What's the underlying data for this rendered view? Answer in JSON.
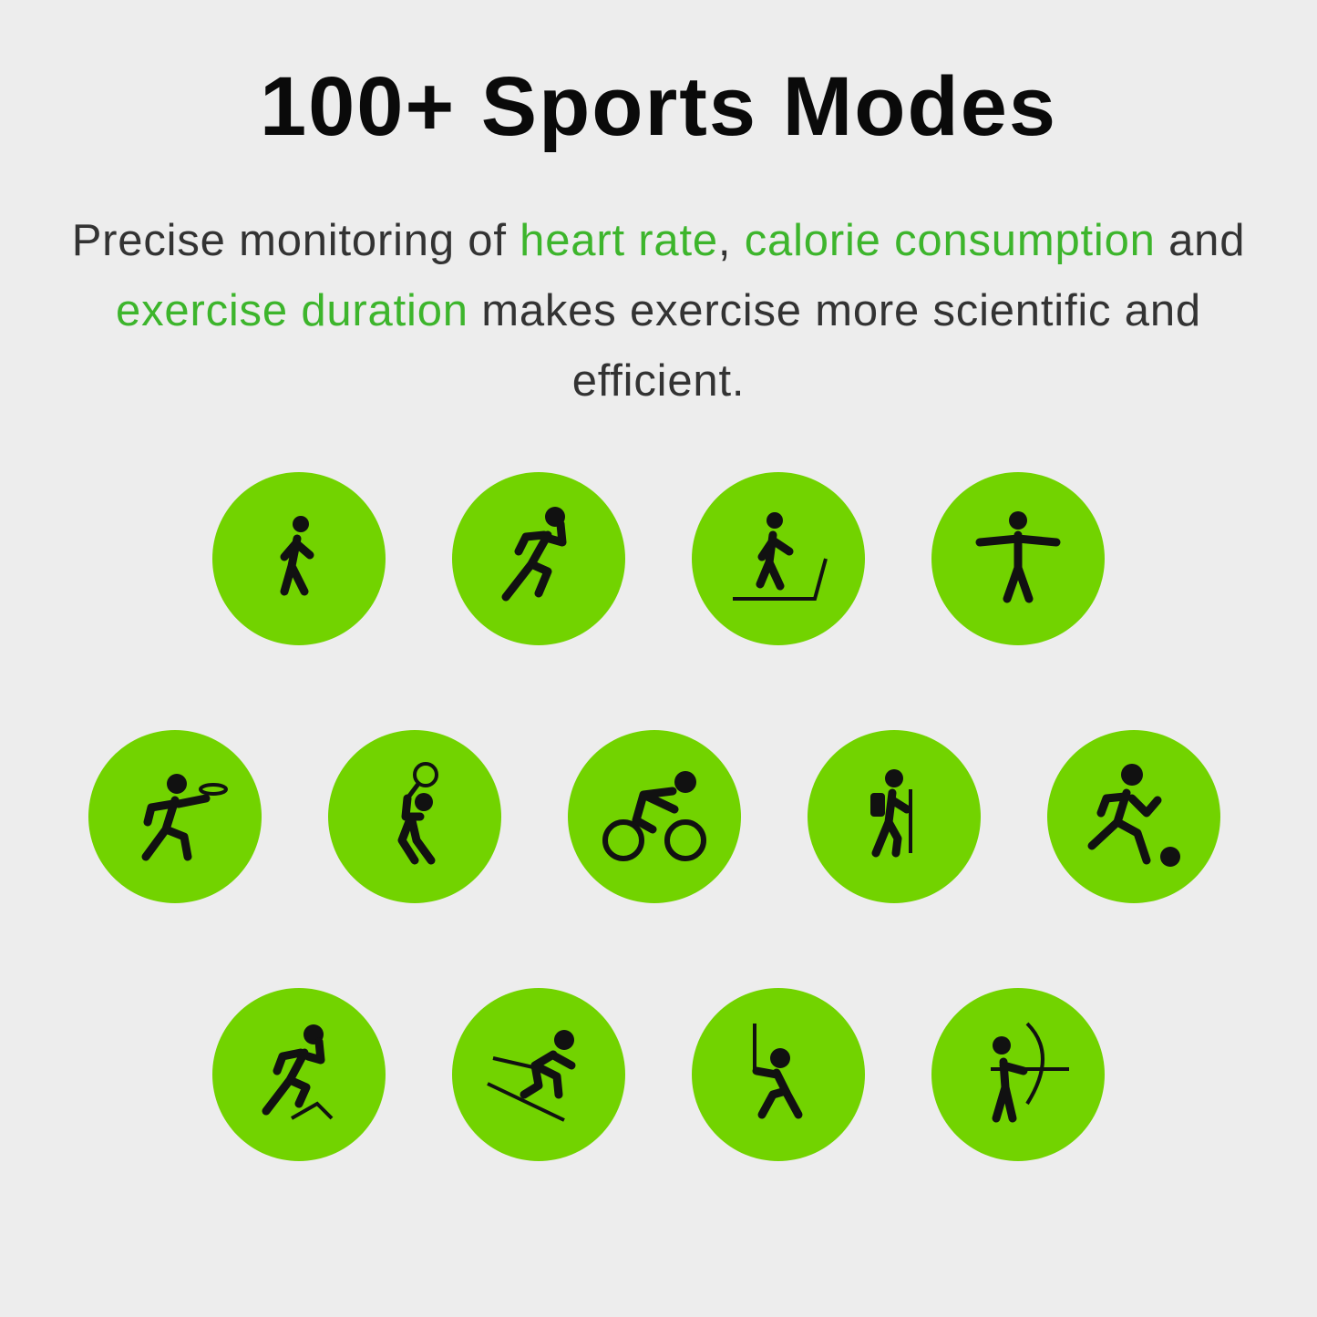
{
  "title": "100+ Sports Modes",
  "description": {
    "p1": "Precise monitoring of ",
    "h1": "heart rate",
    "p2": ", ",
    "h2": "calorie consumption",
    "p3": " and ",
    "h3": "exercise duration",
    "p4": " makes exercise more scientific and efficient."
  },
  "colors": {
    "background": "#ededed",
    "circle": "#72d300",
    "highlight": "#3db52c",
    "icon": "#111111"
  },
  "sports": [
    {
      "icon": "walking-icon"
    },
    {
      "icon": "running-icon"
    },
    {
      "icon": "cross-country-skiing-icon"
    },
    {
      "icon": "yoga-icon"
    },
    {
      "icon": "frisbee-icon"
    },
    {
      "icon": "tennis-icon"
    },
    {
      "icon": "cycling-icon"
    },
    {
      "icon": "hiking-icon"
    },
    {
      "icon": "soccer-icon"
    },
    {
      "icon": "hurdles-icon"
    },
    {
      "icon": "skiing-icon"
    },
    {
      "icon": "fencing-icon"
    },
    {
      "icon": "archery-icon"
    }
  ]
}
